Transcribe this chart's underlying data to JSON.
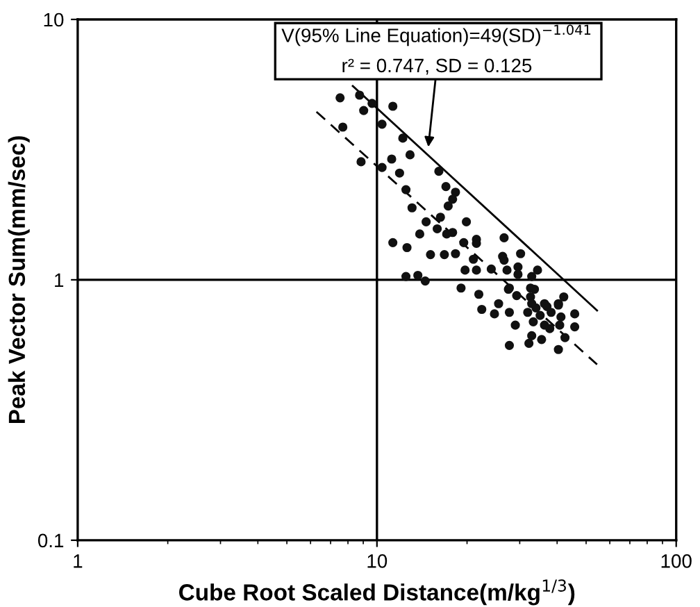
{
  "chart_data": {
    "type": "scatter",
    "xlabel": "Cube Root Scaled Distance(m/kg$^{1/3}$)",
    "ylabel": "Peak Vector Sum(mm/sec)",
    "log": "xy",
    "xlim": [
      1,
      100
    ],
    "ylim": [
      0.1,
      10
    ],
    "xticks": [
      1,
      10,
      100
    ],
    "yticks": [
      0.1,
      1,
      10
    ],
    "grid": false,
    "legend": false,
    "marker": "circle",
    "ref_lines": [
      {
        "axis": "x",
        "value": 10,
        "color": "#000000"
      },
      {
        "axis": "y",
        "value": 1,
        "color": "#000000"
      }
    ],
    "annotations": [
      "V(95% Line Equation)=49(SD)$^{−1.041}$",
      {
        "text": "r² = 0.747, SD = 0.125",
        "x": 14.8,
        "y": 3.13
      }
    ],
    "series": [
      {
        "color": "#111111",
        "x": [
          7.53,
          8.75,
          9.63,
          11.3,
          9.03,
          7.69,
          10.4,
          12.2,
          12.9,
          11.2,
          8.85,
          10.4,
          11.9,
          16.1,
          17.0,
          18.3,
          17.9,
          17.3,
          12.5,
          13.1,
          14.6,
          16.3,
          19.9,
          15.9,
          13.9,
          17.1,
          17.9,
          11.3,
          12.6,
          15.1,
          16.8,
          18.3,
          19.5,
          21.5,
          21.5,
          26.6,
          21.0,
          26.3,
          26.6,
          30.2,
          29.6,
          19.7,
          21.5,
          24.1,
          27.2,
          29.6,
          32.9,
          34.4,
          12.5,
          13.7,
          14.5,
          19.1,
          21.9,
          27.7,
          29.3,
          32.6,
          33.6,
          32.6,
          25.5,
          32.9,
          36.3,
          40.4,
          42.1,
          22.4,
          24.7,
          27.7,
          29.0,
          27.7,
          31.9,
          32.2,
          32.9,
          33.3,
          34.0,
          35.1,
          35.5,
          36.3,
          37.0,
          37.8,
          38.2,
          40.4,
          40.8,
          41.2,
          40.4,
          42.5,
          45.8,
          45.8,
          27.5
        ],
        "values": [
          5.0,
          5.12,
          4.76,
          4.64,
          4.47,
          3.86,
          3.96,
          3.5,
          3.02,
          2.91,
          2.84,
          2.7,
          2.57,
          2.61,
          2.28,
          2.17,
          2.04,
          1.92,
          2.22,
          1.89,
          1.67,
          1.74,
          1.67,
          1.57,
          1.5,
          1.5,
          1.52,
          1.39,
          1.33,
          1.25,
          1.25,
          1.26,
          1.39,
          1.43,
          1.38,
          1.45,
          1.2,
          1.23,
          1.19,
          1.26,
          1.12,
          1.09,
          1.09,
          1.1,
          1.09,
          1.05,
          1.03,
          1.09,
          1.03,
          1.04,
          0.99,
          0.93,
          0.88,
          0.93,
          0.87,
          0.93,
          0.92,
          0.86,
          0.81,
          0.81,
          0.81,
          0.81,
          0.86,
          0.77,
          0.74,
          0.75,
          0.67,
          0.56,
          0.75,
          0.57,
          0.61,
          0.69,
          0.78,
          0.73,
          0.59,
          0.67,
          0.79,
          0.65,
          0.75,
          0.8,
          0.67,
          0.72,
          0.54,
          0.6,
          0.74,
          0.66,
          0.92
        ]
      },
      {
        "type": "line",
        "color": "#000000",
        "line_style": "solid",
        "marker": "none",
        "x": [
          8.3,
          54.4
        ],
        "values": [
          5.55,
          0.763
        ]
      },
      {
        "type": "line",
        "color": "#000000",
        "line_style": "dashed",
        "marker": "none",
        "x": [
          6.28,
          54.4
        ],
        "values": [
          4.42,
          0.473
        ]
      }
    ]
  }
}
